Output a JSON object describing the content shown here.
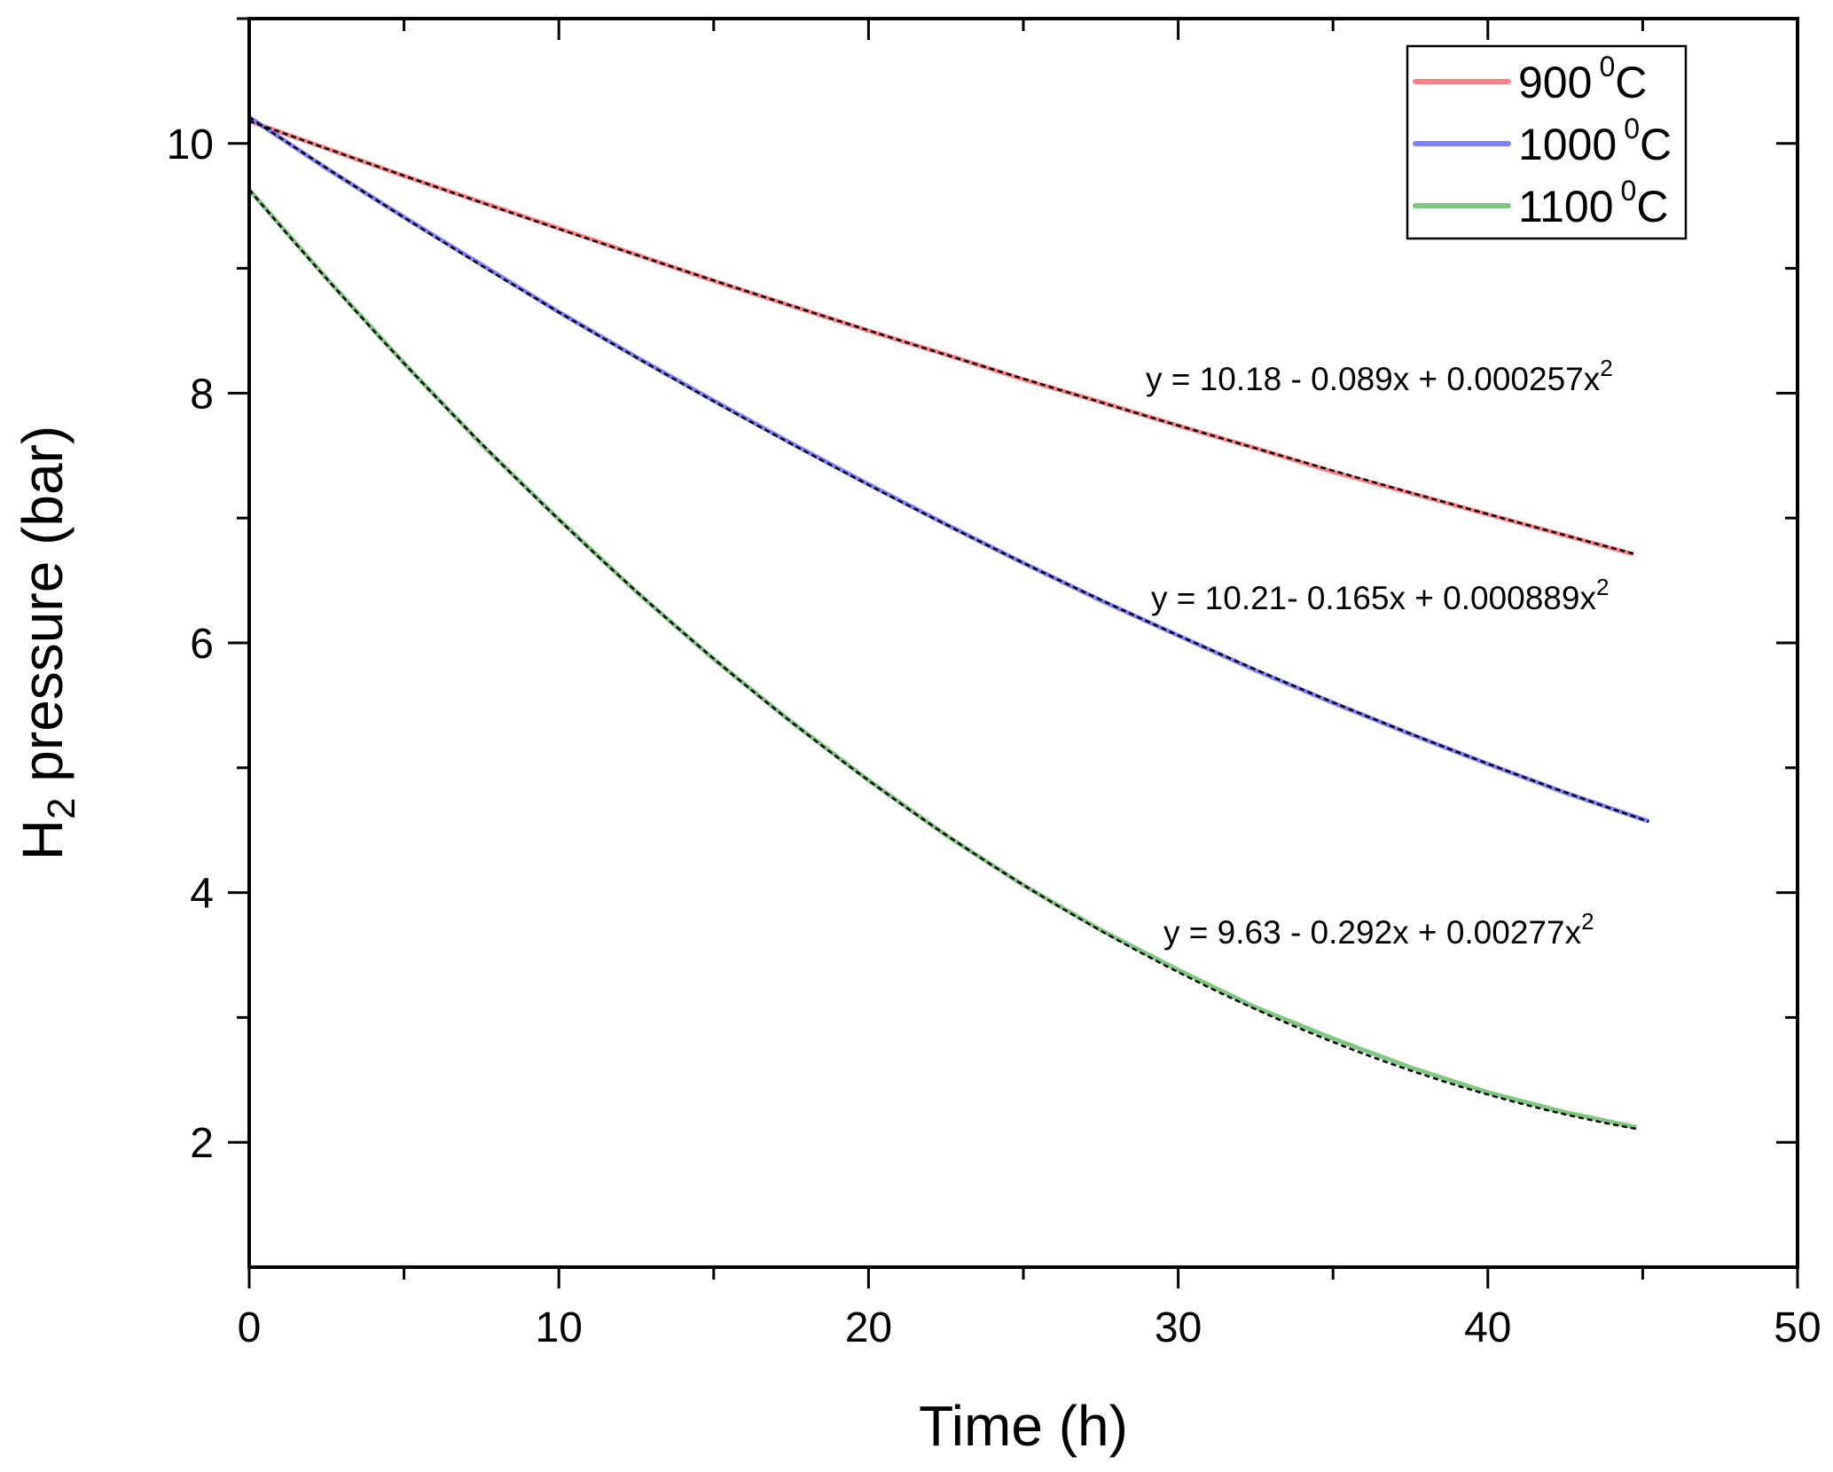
{
  "chart_data": {
    "type": "line",
    "title": "",
    "xlabel": "Time (h)",
    "ylabel_main": "H",
    "ylabel_sub": "2",
    "ylabel_rest": " pressure (bar)",
    "xlim": [
      0,
      50
    ],
    "ylim": [
      1,
      11
    ],
    "x_ticks": [
      0,
      10,
      20,
      30,
      40,
      50
    ],
    "x_tick_labels": [
      "0",
      "10",
      "20",
      "30",
      "40",
      "50"
    ],
    "y_ticks": [
      2,
      4,
      6,
      8,
      10
    ],
    "y_tick_labels": [
      "2",
      "4",
      "6",
      "8",
      "10"
    ],
    "grid": false,
    "legend_position": "top-right",
    "series": [
      {
        "name": "900 0C",
        "label_num": "900",
        "label_sup": "0",
        "label_unit": "C",
        "color": "#ff8080",
        "x": [
          0,
          2.5,
          5,
          7.5,
          10,
          12.5,
          15,
          17.5,
          20,
          22.5,
          25,
          27.5,
          30,
          32.5,
          35,
          37.5,
          40,
          42.5,
          44.7
        ],
        "y": [
          10.18,
          9.96,
          9.74,
          9.53,
          9.32,
          9.11,
          8.9,
          8.7,
          8.5,
          8.31,
          8.11,
          7.93,
          7.74,
          7.56,
          7.37,
          7.2,
          7.03,
          6.86,
          6.71
        ]
      },
      {
        "name": "1000 0C",
        "label_num": "1000",
        "label_sup": "0",
        "label_unit": "C",
        "color": "#8080ff",
        "x": [
          0,
          2.5,
          5,
          7.5,
          10,
          12.5,
          15,
          17.5,
          20,
          22.5,
          25,
          27.5,
          30,
          32.5,
          35,
          37.5,
          40,
          42.5,
          45.2
        ],
        "y": [
          10.21,
          9.8,
          9.41,
          9.03,
          8.65,
          8.29,
          7.94,
          7.6,
          7.27,
          6.95,
          6.64,
          6.34,
          6.06,
          5.78,
          5.52,
          5.27,
          5.03,
          4.8,
          4.57
        ]
      },
      {
        "name": "1100 0C",
        "label_num": "1100",
        "label_sup": "0",
        "label_unit": "C",
        "color": "#80c880",
        "x": [
          0,
          2.5,
          5,
          7.5,
          10,
          12.5,
          15,
          17.5,
          20,
          22.5,
          25,
          27.5,
          30,
          32.5,
          35,
          37.5,
          40,
          42.5,
          44.8
        ],
        "y": [
          9.63,
          8.92,
          8.24,
          7.59,
          6.99,
          6.41,
          5.87,
          5.37,
          4.9,
          4.46,
          4.06,
          3.7,
          3.38,
          3.08,
          2.83,
          2.6,
          2.4,
          2.24,
          2.12
        ]
      }
    ],
    "fits": [
      {
        "series": "900 0C",
        "coef": [
          10.18,
          -0.089,
          0.000257
        ],
        "xmax": 44.7,
        "label_main": "y = 10.18 - 0.089x + 0.000257x",
        "label_sup": "2"
      },
      {
        "series": "1000 0C",
        "coef": [
          10.21,
          -0.165,
          0.000889
        ],
        "xmax": 45.2,
        "label_main": "y = 10.21- 0.165x + 0.000889x",
        "label_sup": "2"
      },
      {
        "series": "1100 0C",
        "coef": [
          9.63,
          -0.292,
          0.00277
        ],
        "xmax": 44.8,
        "label_main": "y = 9.63 - 0.292x + 0.00277x",
        "label_sup": "2"
      }
    ],
    "fit_line_color": "#000000"
  }
}
